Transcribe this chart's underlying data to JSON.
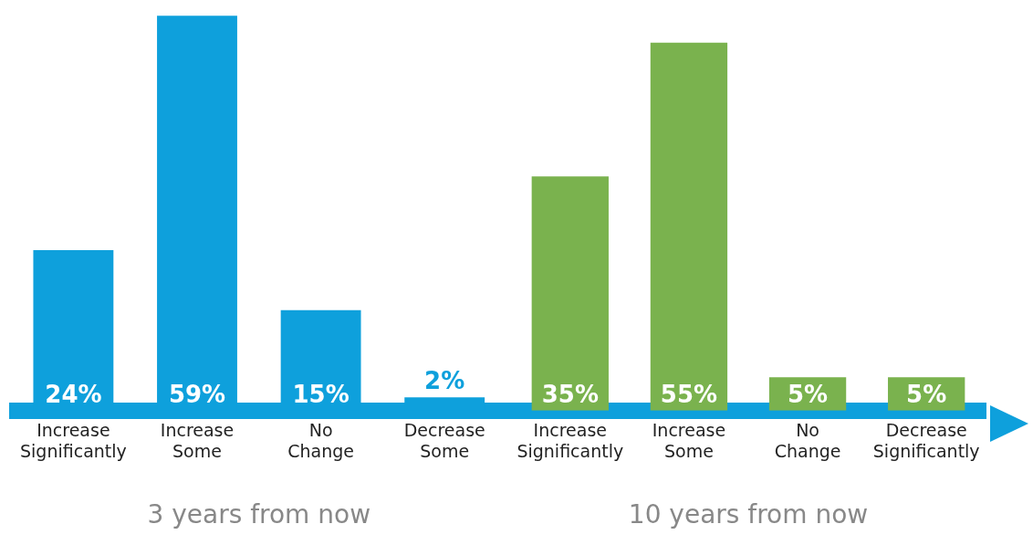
{
  "chart_data": [
    {
      "type": "bar",
      "categories": [
        "Increase Significantly",
        "Increase Some",
        "No Change",
        "Decrease Some"
      ],
      "values": [
        24,
        59,
        15,
        2
      ],
      "value_labels": [
        "24%",
        "59%",
        "15%",
        "2%"
      ],
      "color": "#0ea0dc",
      "xlabel": "3 years from now",
      "tick_labels": "x",
      "grid": false,
      "legend": false
    },
    {
      "type": "bar",
      "categories": [
        "Increase Significantly",
        "Increase Some",
        "No Change",
        "Decrease Significantly"
      ],
      "values": [
        35,
        55,
        5,
        5
      ],
      "value_labels": [
        "35%",
        "55%",
        "5%",
        "5%"
      ],
      "color": "#7ab24e",
      "xlabel": "10 years from now",
      "tick_labels": "x",
      "grid": false,
      "legend": false
    }
  ]
}
